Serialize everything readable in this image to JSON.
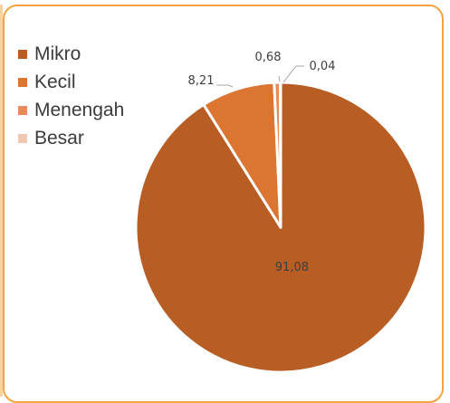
{
  "chart_data": {
    "type": "pie",
    "categories": [
      "Mikro",
      "Kecil",
      "Menengah",
      "Besar"
    ],
    "values": [
      91.08,
      8.21,
      0.68,
      0.04
    ],
    "value_labels": [
      "91,08",
      "8,21",
      "0,68",
      "0,04"
    ],
    "colors": [
      "#b85d24",
      "#dc7432",
      "#e98a5b",
      "#f0c7b0"
    ],
    "legend_position": "left",
    "title": ""
  },
  "colors": {
    "border": "#f4a340",
    "slice_separator": "#ffffff",
    "leader_line": "#a5a5a5"
  }
}
